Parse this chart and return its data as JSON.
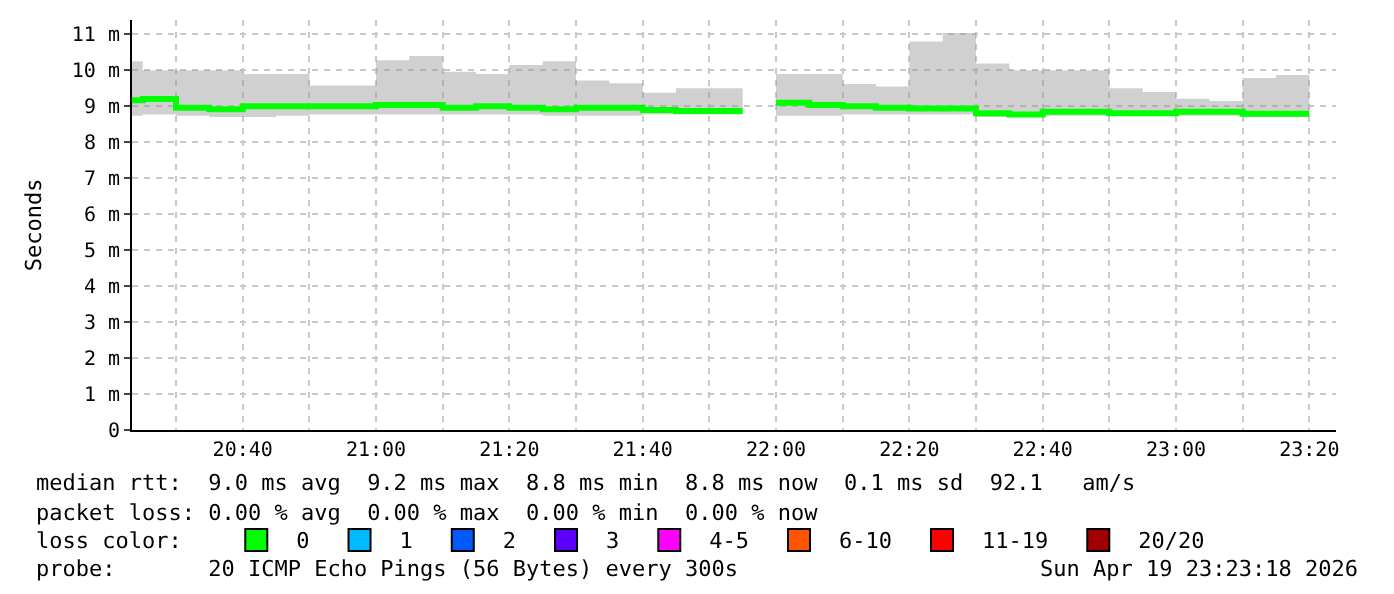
{
  "chart_data": {
    "type": "step",
    "ylabel": "Seconds",
    "xlim": [
      20.39,
      23.4
    ],
    "ylim": [
      0,
      11.4
    ],
    "xticks": [
      {
        "value": 20.5,
        "label": null
      },
      {
        "value": 20.6667,
        "label": "20:40"
      },
      {
        "value": 20.8333,
        "label": null
      },
      {
        "value": 21.0,
        "label": "21:00"
      },
      {
        "value": 21.1667,
        "label": null
      },
      {
        "value": 21.3333,
        "label": "21:20"
      },
      {
        "value": 21.5,
        "label": null
      },
      {
        "value": 21.6667,
        "label": "21:40"
      },
      {
        "value": 21.8333,
        "label": null
      },
      {
        "value": 22.0,
        "label": "22:00"
      },
      {
        "value": 22.1667,
        "label": null
      },
      {
        "value": 22.3333,
        "label": "22:20"
      },
      {
        "value": 22.5,
        "label": null
      },
      {
        "value": 22.6667,
        "label": "22:40"
      },
      {
        "value": 22.8333,
        "label": null
      },
      {
        "value": 23.0,
        "label": "23:00"
      },
      {
        "value": 23.1667,
        "label": null
      },
      {
        "value": 23.3333,
        "label": "23:20"
      }
    ],
    "yticks": [
      0,
      {
        "value": 1,
        "label": "1 m"
      },
      {
        "value": 2,
        "label": "2 m"
      },
      {
        "value": 3,
        "label": "3 m"
      },
      {
        "value": 4,
        "label": "4 m"
      },
      {
        "value": 5,
        "label": "5 m"
      },
      {
        "value": 6,
        "label": "6 m"
      },
      {
        "value": 7,
        "label": "7 m"
      },
      {
        "value": 8,
        "label": "8 m"
      },
      {
        "value": 9,
        "label": "9 m"
      },
      {
        "value": 10,
        "label": "10 m"
      },
      {
        "value": 11,
        "label": "11 m"
      }
    ],
    "grid": true,
    "legend": "bottom",
    "series": [
      {
        "color": "#00ff00",
        "x": [
          20.39,
          20.4167,
          20.5,
          20.5833,
          20.6667,
          20.75,
          20.8333,
          20.9167,
          21.0,
          21.0833,
          21.1667,
          21.25,
          21.3333,
          21.4167,
          21.5,
          21.5833,
          21.6667,
          21.75,
          21.8333,
          21.9167,
          21.9583,
          22.0,
          22.0833,
          22.1667,
          22.25,
          22.3333,
          22.4167,
          22.5,
          22.5833,
          22.6667,
          22.75,
          22.8333,
          22.9167,
          23.0,
          23.0833,
          23.1667,
          23.25,
          23.3333
        ],
        "values": [
          9.17,
          9.2,
          8.96,
          8.92,
          9.0,
          9.0,
          9.0,
          9.0,
          9.04,
          9.04,
          8.96,
          9.0,
          8.96,
          8.92,
          8.96,
          8.96,
          8.9,
          8.87,
          8.87,
          8.87,
          null,
          9.1,
          9.04,
          9.0,
          8.96,
          8.94,
          8.94,
          8.81,
          8.77,
          8.85,
          8.85,
          8.81,
          8.81,
          8.85,
          8.85,
          8.79,
          8.79,
          8.79
        ],
        "lower": [
          8.74,
          8.77,
          8.74,
          8.7,
          8.7,
          8.74,
          8.77,
          8.77,
          8.77,
          8.77,
          8.77,
          8.77,
          8.77,
          8.74,
          8.74,
          8.74,
          8.77,
          8.77,
          8.77,
          8.77,
          null,
          8.74,
          8.74,
          8.77,
          8.77,
          8.77,
          8.77,
          8.7,
          8.7,
          8.74,
          8.74,
          8.74,
          8.74,
          8.74,
          8.74,
          8.7,
          8.7,
          8.7
        ],
        "upper": [
          10.25,
          10.0,
          10.0,
          10.0,
          9.9,
          9.9,
          9.58,
          9.58,
          10.28,
          10.4,
          9.96,
          9.9,
          10.15,
          10.25,
          9.72,
          9.64,
          9.38,
          9.5,
          9.5,
          9.5,
          null,
          9.9,
          9.9,
          9.62,
          9.55,
          10.8,
          11.04,
          10.19,
          10.0,
          10.0,
          10.0,
          9.5,
          9.4,
          9.21,
          9.15,
          9.79,
          9.87,
          9.87
        ]
      },
      {
        "name": "0",
        "color": "#00ff00",
        "marker": "square",
        "values": [
          null
        ]
      },
      {
        "name": "1",
        "color": "#00bbff",
        "marker": "square",
        "values": [
          null
        ]
      },
      {
        "name": "2",
        "color": "#0059ff",
        "marker": "square",
        "values": [
          null
        ]
      },
      {
        "name": "3",
        "color": "#5e00ff",
        "marker": "square",
        "values": [
          null
        ]
      },
      {
        "name": "4-5",
        "color": "#ff00ff",
        "marker": "square",
        "values": [
          null
        ]
      },
      {
        "name": "6-10",
        "color": "#ff5500",
        "marker": "square",
        "values": [
          null
        ]
      },
      {
        "name": "11-19",
        "color": "#ff0000",
        "marker": "square",
        "values": [
          null
        ]
      },
      {
        "name": "20/20",
        "color": "#a10000",
        "marker": "square",
        "values": [
          null
        ]
      }
    ],
    "annotations": [
      "median rtt:  9.0 ms avg  9.2 ms max  8.8 ms min  8.8 ms now  0.1 ms sd  92.1   am/s",
      "packet loss: 0.00 % avg  0.00 % max  0.00 % min  0.00 % now",
      "loss color:",
      "probe:       20 ICMP Echo Pings (56 Bytes) every 300s",
      "Sun Apr 19 23:23:18 2026"
    ]
  }
}
